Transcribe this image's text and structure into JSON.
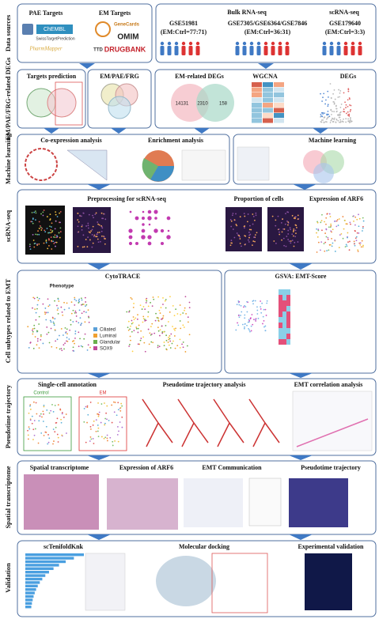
{
  "side_labels": [
    "Data sources",
    "EM/PAE/FRG-related DEGs",
    "Machine learning",
    "scRNA-seq",
    "Cell subtypes related to EMT",
    "Pseudotime trajectory",
    "Spatial transcriptome",
    "Validation"
  ],
  "data_sources": {
    "pae_title": "PAE Targets",
    "em_title": "EM Targets",
    "pae_dbs": [
      "ChEMBL",
      "SwissTargetPrediction",
      "PharmMapper"
    ],
    "em_dbs": [
      "GeneCards",
      "OMIM",
      "TTD",
      "DRUGBANK"
    ],
    "bulk_title": "Bulk RNA-seq",
    "sc_title": "scRNA-seq",
    "datasets": [
      {
        "id": "GSE51981",
        "ratio": "(EM:Ctrl=77:71)"
      },
      {
        "id": "GSE7305/GSE6364/GSE7846",
        "ratio": "(EM:Ctrl=36:31)"
      },
      {
        "id": "GSE179640",
        "ratio": "(EM:Ctrl=3:3)"
      }
    ]
  },
  "degs": {
    "titles": [
      "Targets prediction",
      "EM/PAE/FRG",
      "EM-related DEGs",
      "WGCNA",
      "DEGs"
    ],
    "venn": [
      "14131",
      "2310",
      "158"
    ]
  },
  "machine_learning": {
    "titles": [
      "Co-expression analysis",
      "Enrichment analysis",
      "Machine learning"
    ]
  },
  "scrna": {
    "titles": [
      "Preprocessing for scRNA-seq",
      "Proportion of cells",
      "Expression of ARF6"
    ]
  },
  "cell_subtypes": {
    "titles": [
      "CytoTRACE",
      "Phenotype",
      "GSVA: EMT-Score"
    ],
    "legend": [
      "Ciliated",
      "Luminal",
      "Glandular",
      "SOX9"
    ]
  },
  "pseudotime": {
    "titles": [
      "Single-cell annotation",
      "Pseudotime trajectory analysis",
      "EMT correlation analysis"
    ],
    "groups": [
      "Control",
      "EM"
    ]
  },
  "spatial": {
    "titles": [
      "Spatial transcriptome",
      "Expression of ARF6",
      "EMT Communication",
      "Pseudotime trajectory"
    ]
  },
  "validation": {
    "titles": [
      "scTenifoldKnk",
      "Molecular docking",
      "Experimental validation"
    ]
  }
}
